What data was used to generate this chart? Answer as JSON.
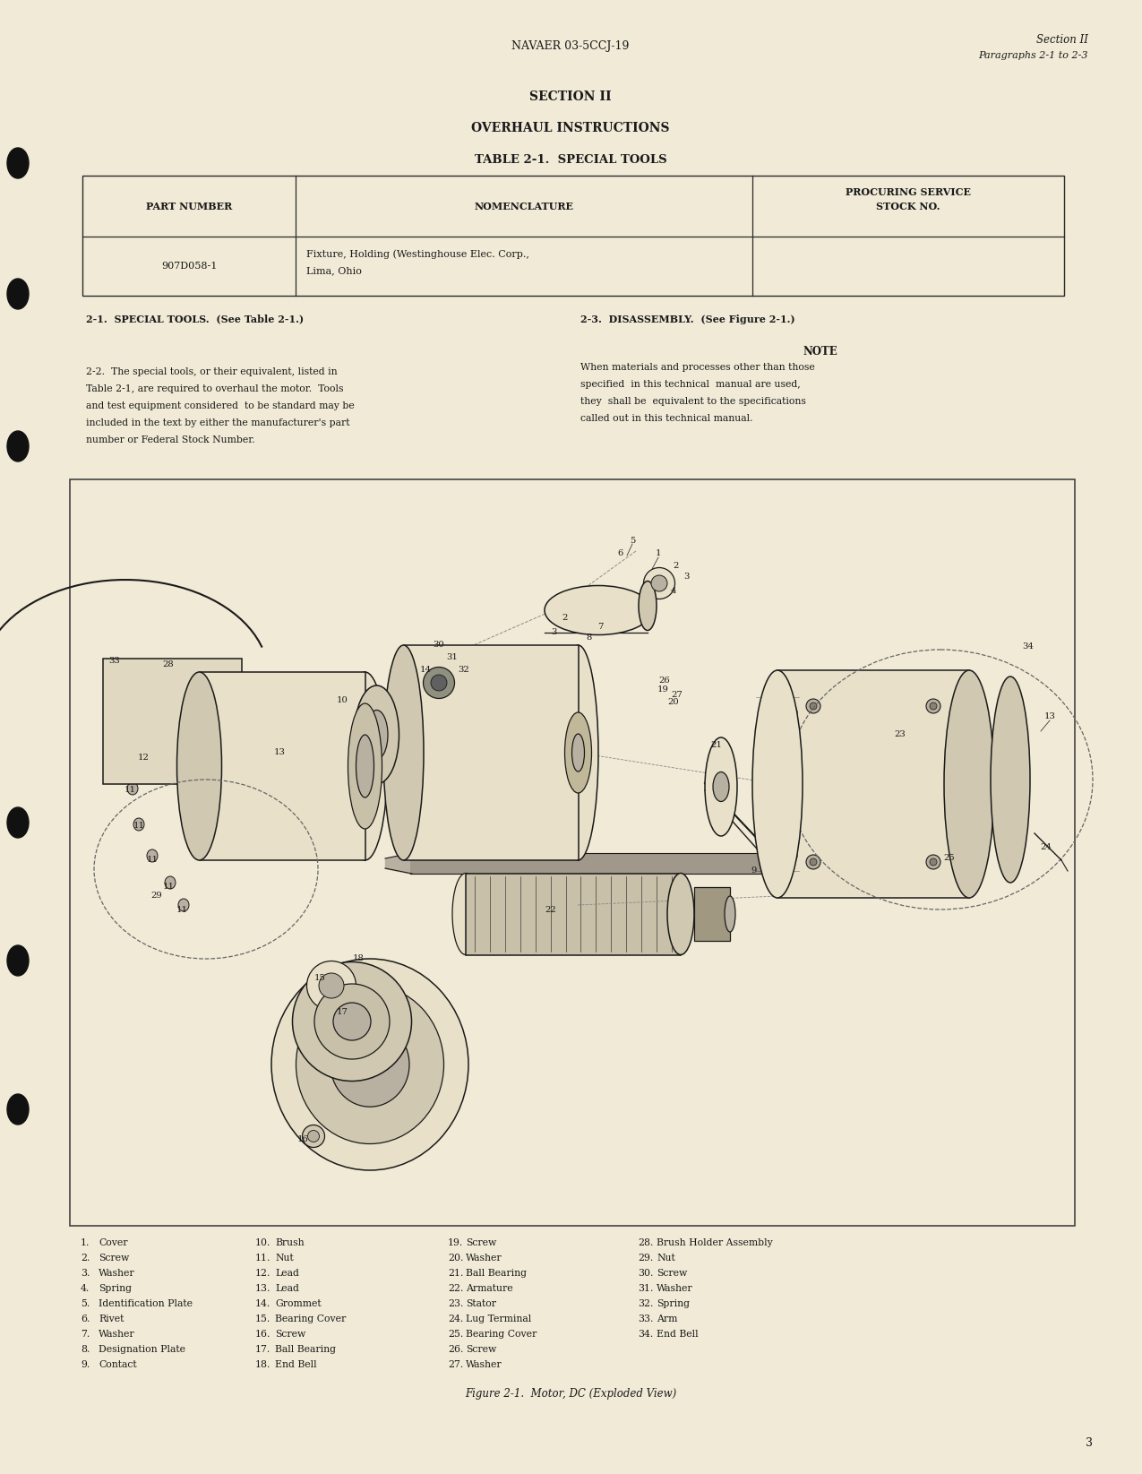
{
  "page_color": "#f0ead6",
  "text_color": "#1a1a1a",
  "header_center": "NAVAER 03-5CCJ-19",
  "header_right_line1": "Section II",
  "header_right_line2": "Paragraphs 2-1 to 2-3",
  "section_title": "SECTION II",
  "overhaul_title": "OVERHAUL INSTRUCTIONS",
  "table_title": "TABLE 2-1.  SPECIAL TOOLS",
  "col1_header": "PART NUMBER",
  "col2_header": "NOMENCLATURE",
  "col3_header_1": "PROCURING SERVICE",
  "col3_header_2": "STOCK NO.",
  "part_number": "907D058-1",
  "nomenclature_1": "Fixture, Holding (Westinghouse Elec. Corp.,",
  "nomenclature_2": "Lima, Ohio",
  "para_21": "2-1.  SPECIAL TOOLS.  (See Table 2-1.)",
  "para_23": "2-3.  DISASSEMBLY.  (See Figure 2-1.)",
  "note_heading": "NOTE",
  "para_22_lines": [
    "2-2.  The special tools, or their equivalent, listed in",
    "Table 2-1, are required to overhaul the motor.  Tools",
    "and test equipment considered  to be standard may be",
    "included in the text by either the manufacturer's part",
    "number or Federal Stock Number."
  ],
  "note_lines": [
    "When materials and processes other than those",
    "specified  in this technical  manual are used,",
    "they  shall be  equivalent to the specifications",
    "called out in this technical manual."
  ],
  "figure_caption": "Figure 2-1.  Motor, DC (Exploded View)",
  "page_number": "3",
  "parts_col1": [
    [
      "1.",
      "Cover"
    ],
    [
      "2.",
      "Screw"
    ],
    [
      "3.",
      "Washer"
    ],
    [
      "4.",
      "Spring"
    ],
    [
      "5.",
      "Identification Plate"
    ],
    [
      "6.",
      "Rivet"
    ],
    [
      "7.",
      "Washer"
    ],
    [
      "8.",
      "Designation Plate"
    ],
    [
      "9.",
      "Contact"
    ]
  ],
  "parts_col2": [
    [
      "10.",
      "Brush"
    ],
    [
      "11.",
      "Nut"
    ],
    [
      "12.",
      "Lead"
    ],
    [
      "13.",
      "Lead"
    ],
    [
      "14.",
      "Grommet"
    ],
    [
      "15.",
      "Bearing Cover"
    ],
    [
      "16.",
      "Screw"
    ],
    [
      "17.",
      "Ball Bearing"
    ],
    [
      "18.",
      "End Bell"
    ]
  ],
  "parts_col3": [
    [
      "19.",
      "Screw"
    ],
    [
      "20.",
      "Washer"
    ],
    [
      "21.",
      "Ball Bearing"
    ],
    [
      "22.",
      "Armature"
    ],
    [
      "23.",
      "Stator"
    ],
    [
      "24.",
      "Lug Terminal"
    ],
    [
      "25.",
      "Bearing Cover"
    ],
    [
      "26.",
      "Screw"
    ],
    [
      "27.",
      "Washer"
    ]
  ],
  "parts_col4": [
    [
      "28.",
      "Brush Holder Assembly"
    ],
    [
      "29.",
      "Nut"
    ],
    [
      "30.",
      "Screw"
    ],
    [
      "31.",
      "Washer"
    ],
    [
      "32.",
      "Spring"
    ],
    [
      "33.",
      "Arm"
    ],
    [
      "34.",
      "End Bell"
    ],
    [
      "",
      ""
    ],
    [
      "",
      ""
    ]
  ]
}
